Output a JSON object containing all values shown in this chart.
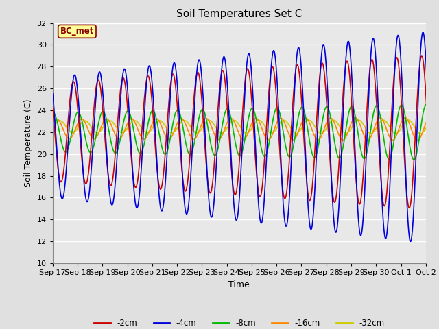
{
  "title": "Soil Temperatures Set C",
  "xlabel": "Time",
  "ylabel": "Soil Temperature (C)",
  "annotation": "BC_met",
  "ylim": [
    10,
    32
  ],
  "legend_labels": [
    "-2cm",
    "-4cm",
    "-8cm",
    "-16cm",
    "-32cm"
  ],
  "legend_colors": [
    "#cc0000",
    "#0000dd",
    "#00bb00",
    "#ff8800",
    "#cccc00"
  ],
  "background_color": "#e0e0e0",
  "plot_bg_color": "#e8e8e8",
  "grid_color": "#ffffff",
  "num_days": 16,
  "xtick_labels": [
    "Sep 17",
    "Sep 18",
    "Sep 19",
    "Sep 20",
    "Sep 21",
    "Sep 22",
    "Sep 23",
    "Sep 24",
    "Sep 25",
    "Sep 26",
    "Sep 27",
    "Sep 28",
    "Sep 29",
    "Sep 30",
    "Oct 1",
    "Oct 2"
  ],
  "xtick_positions": [
    0,
    1,
    2,
    3,
    4,
    5,
    6,
    7,
    8,
    9,
    10,
    11,
    12,
    13,
    14,
    15
  ],
  "ytick_vals": [
    10,
    12,
    14,
    16,
    18,
    20,
    22,
    24,
    26,
    28,
    30,
    32
  ]
}
